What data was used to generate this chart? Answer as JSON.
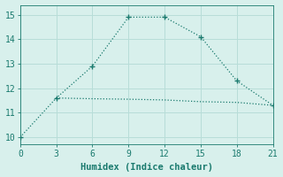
{
  "line1_x": [
    0,
    3,
    6,
    9,
    12,
    15,
    18,
    21
  ],
  "line1_y": [
    10.0,
    11.6,
    12.9,
    14.9,
    14.9,
    14.1,
    12.3,
    11.3
  ],
  "line2_x": [
    3,
    6,
    9,
    12,
    15,
    18,
    21
  ],
  "line2_y": [
    11.6,
    11.57,
    11.55,
    11.52,
    11.45,
    11.42,
    11.3
  ],
  "line_color": "#1a7a6e",
  "bg_color": "#d8f0ec",
  "grid_color": "#b8ddd8",
  "xlabel": "Humidex (Indice chaleur)",
  "xlim": [
    0,
    21
  ],
  "ylim": [
    9.7,
    15.4
  ],
  "xticks": [
    0,
    3,
    6,
    9,
    12,
    15,
    18,
    21
  ],
  "yticks": [
    10,
    11,
    12,
    13,
    14,
    15
  ],
  "marker": "+",
  "markersize": 5,
  "linewidth": 0.9
}
